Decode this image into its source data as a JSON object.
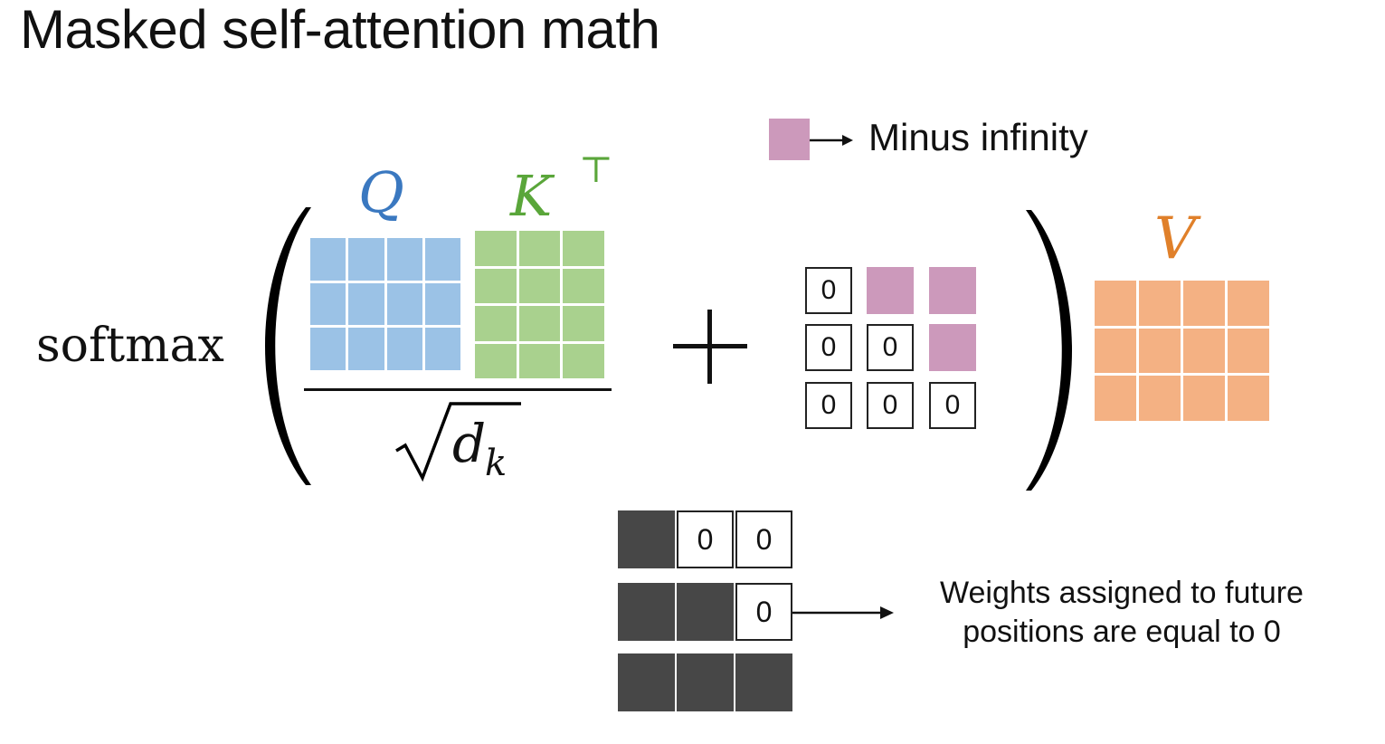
{
  "title": "Masked self-attention math",
  "formula": {
    "softmax_label": "softmax",
    "q_label": "Q",
    "k_label": "K",
    "k_superscript": "⊤",
    "v_label": "V",
    "denominator_radicand": "d",
    "denominator_subscript": "k",
    "plus": "+"
  },
  "legend": {
    "minus_infinity_label": "Minus infinity"
  },
  "mask_matrix": {
    "rows": [
      [
        "0",
        "-inf",
        "-inf"
      ],
      [
        "0",
        "0",
        "-inf"
      ],
      [
        "0",
        "0",
        "0"
      ]
    ]
  },
  "weights_matrix": {
    "rows": [
      [
        "filled",
        "0",
        "0"
      ],
      [
        "filled",
        "filled",
        "0"
      ],
      [
        "filled",
        "filled",
        "filled"
      ]
    ]
  },
  "annotation": {
    "line1": "Weights assigned to future",
    "line2": "positions are equal to 0"
  },
  "colors": {
    "q": "#9bc2e6",
    "k": "#a9d18e",
    "v": "#f4b183",
    "minus_infinity": "#cc99bb",
    "weight_filled": "#474747",
    "q_label": "#3a78c0",
    "k_label": "#5aa63a",
    "v_label": "#e0802a"
  }
}
